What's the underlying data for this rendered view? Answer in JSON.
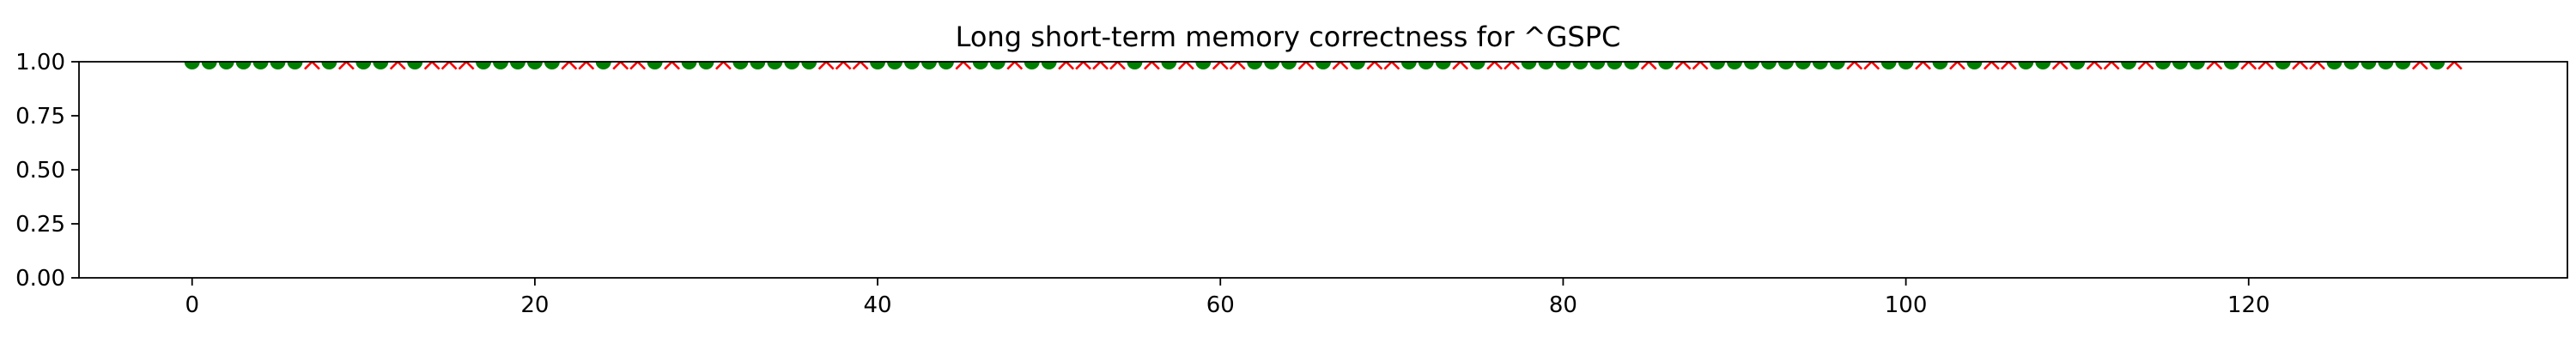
{
  "chart_data": {
    "type": "scatter",
    "title": "Long short-term memory correctness for ^GSPC",
    "xlabel": "",
    "ylabel": "",
    "xlim": [
      -6.6,
      138.6
    ],
    "ylim": [
      0,
      1
    ],
    "xticks": [
      0,
      20,
      40,
      60,
      80,
      100,
      120
    ],
    "yticks": [
      0.0,
      0.25,
      0.5,
      0.75,
      1.0
    ],
    "ytick_labels": [
      "0.00",
      "0.25",
      "0.50",
      "0.75",
      "1.00"
    ],
    "grid": false,
    "y_value": 1,
    "correct_color": "#008000",
    "incorrect_color": "#ff0000",
    "correct": [
      0,
      1,
      2,
      3,
      4,
      5,
      6,
      8,
      10,
      11,
      13,
      17,
      18,
      19,
      20,
      21,
      24,
      27,
      29,
      30,
      32,
      33,
      34,
      35,
      36,
      40,
      41,
      42,
      43,
      44,
      46,
      47,
      49,
      50,
      55,
      57,
      59,
      62,
      63,
      64,
      66,
      68,
      71,
      72,
      73,
      75,
      78,
      79,
      80,
      81,
      82,
      83,
      84,
      86,
      89,
      90,
      91,
      92,
      93,
      94,
      95,
      96,
      99,
      100,
      102,
      104,
      107,
      108,
      110,
      113,
      115,
      116,
      117,
      119,
      122,
      125,
      126,
      127,
      128,
      129,
      131
    ],
    "incorrect": [
      7,
      9,
      12,
      14,
      15,
      16,
      22,
      23,
      25,
      26,
      28,
      31,
      37,
      38,
      39,
      45,
      48,
      51,
      52,
      53,
      54,
      56,
      58,
      60,
      61,
      65,
      67,
      69,
      70,
      74,
      76,
      77,
      85,
      87,
      88,
      97,
      98,
      101,
      103,
      105,
      106,
      109,
      111,
      112,
      114,
      118,
      120,
      121,
      123,
      124,
      130,
      132
    ]
  }
}
